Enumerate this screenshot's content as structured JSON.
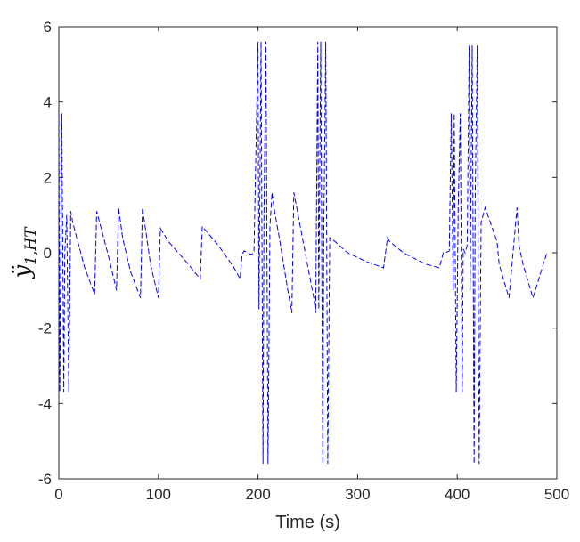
{
  "chart_data": {
    "type": "line",
    "title": "",
    "xlabel": "Time (s)",
    "ylabel": {
      "base": "ÿ",
      "sub": "1,HT"
    },
    "xlim": [
      0,
      500
    ],
    "ylim": [
      -6,
      6
    ],
    "xticks": [
      0,
      100,
      200,
      300,
      400,
      500
    ],
    "yticks": [
      -6,
      -4,
      -2,
      0,
      2,
      4,
      6
    ],
    "xtick_labels": [
      "0",
      "100",
      "200",
      "300",
      "400",
      "500"
    ],
    "ytick_labels": [
      "-6",
      "-4",
      "-2",
      "0",
      "2",
      "4",
      "6"
    ],
    "grid": false,
    "legend": "none",
    "series": [
      {
        "color": "#0000ff",
        "dash": "dashed",
        "x": [
          0,
          1,
          3,
          5,
          6,
          8,
          10,
          12,
          14,
          16,
          26,
          36,
          38,
          50,
          58,
          60,
          64,
          72,
          82,
          84,
          92,
          100,
          102,
          110,
          130,
          142,
          144,
          160,
          176,
          182,
          184,
          186,
          190,
          193,
          196,
          200,
          201,
          203,
          205,
          206,
          208,
          210,
          212,
          214,
          216,
          222,
          230,
          234,
          236,
          246,
          256,
          258,
          260,
          261,
          263,
          265,
          266,
          268,
          270,
          272,
          275,
          290,
          310,
          326,
          330,
          332,
          346,
          368,
          382,
          386,
          388,
          392,
          394,
          396,
          397,
          399,
          401,
          403,
          405,
          406,
          408,
          410,
          412,
          413,
          415,
          417,
          418,
          420,
          422,
          424,
          428,
          440,
          442,
          452,
          460,
          462,
          466,
          476,
          490
        ],
        "y": [
          3.7,
          -3.7,
          3.7,
          -3.7,
          0,
          1.0,
          -3.7,
          1.1,
          0.8,
          0.6,
          -0.4,
          -1.1,
          1.1,
          -0.1,
          -1.0,
          1.2,
          0.4,
          -0.5,
          -1.2,
          1.2,
          -0.3,
          -1.2,
          0.65,
          0.3,
          -0.3,
          -0.7,
          0.7,
          0.2,
          -0.4,
          -0.7,
          -0.05,
          0.05,
          0.0,
          -0.05,
          0.0,
          5.6,
          -1.5,
          5.6,
          -5.6,
          1.0,
          5.6,
          -5.6,
          0.7,
          1.6,
          1.2,
          0.3,
          -1.0,
          -1.6,
          1.6,
          0.2,
          -1.2,
          -1.6,
          5.6,
          -1.5,
          5.6,
          -5.6,
          0.5,
          5.6,
          -5.6,
          0.4,
          0.35,
          0.0,
          -0.25,
          -0.4,
          0.4,
          0.3,
          0.0,
          -0.3,
          -0.4,
          0.0,
          0.0,
          0.05,
          3.7,
          -1.0,
          3.7,
          -3.7,
          1.2,
          3.7,
          -3.7,
          0.1,
          0.0,
          0.2,
          5.5,
          -1.0,
          5.5,
          -5.6,
          1.3,
          5.5,
          -5.6,
          0.8,
          1.2,
          0.3,
          -0.3,
          -1.2,
          1.2,
          0.2,
          -0.3,
          -1.2,
          0.0
        ]
      }
    ]
  }
}
